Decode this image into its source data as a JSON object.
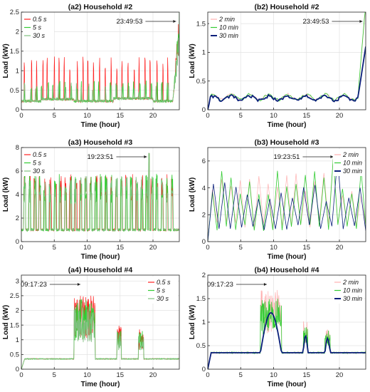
{
  "chart_data": [
    {
      "id": "a2",
      "type": "line",
      "title": "(a2) Household #2",
      "xlabel": "Time (hour)",
      "ylabel": "Load (kW)",
      "xlim": [
        0,
        24
      ],
      "ylim": [
        0,
        2.5
      ],
      "xticks": [
        0,
        5,
        10,
        15,
        20
      ],
      "yticks": [
        0,
        0.5,
        1,
        1.5,
        2,
        2.5
      ],
      "grid": true,
      "legend_position": "top-left",
      "annotation": {
        "text": "23:49:53",
        "x": 23.83,
        "y": 2.3
      },
      "series": [
        {
          "name": "0.5 s",
          "color": "#ff2020",
          "style": "spiky",
          "base": 0.22,
          "peak": 1.3,
          "spikes": 26,
          "end_peak": 2.3
        },
        {
          "name": "5 s",
          "color": "#33cc33",
          "style": "steps",
          "base": 0.22,
          "peak": 0.75,
          "spikes": 26,
          "end_peak": 2.3
        },
        {
          "name": "30 s",
          "color": "#80c080",
          "style": "steps",
          "base": 0.22,
          "peak": 0.7,
          "spikes": 26,
          "end_peak": 2.0
        }
      ]
    },
    {
      "id": "b2",
      "type": "line",
      "title": "(b2) Household #2",
      "xlabel": "Time (hour)",
      "ylabel": "Load (kW)",
      "xlim": [
        0,
        24
      ],
      "ylim": [
        0,
        1.7
      ],
      "xticks": [
        0,
        5,
        10,
        15,
        20
      ],
      "yticks": [
        0,
        0.5,
        1,
        1.5
      ],
      "grid": true,
      "legend_position": "top-left",
      "annotation": {
        "text": "23:49:53",
        "x": 23.83,
        "y": 1.55
      },
      "series": [
        {
          "name": "2 min",
          "color": "#ffb0b0",
          "style": "smooth",
          "base": 0.22,
          "peak": 0.3,
          "spikes": 20,
          "end_peak": 1.55
        },
        {
          "name": "10 min",
          "color": "#33cc33",
          "style": "smooth",
          "base": 0.22,
          "peak": 0.3,
          "spikes": 20,
          "end_peak": 1.6
        },
        {
          "name": "30 min",
          "color": "#0a1f7a",
          "style": "smooth",
          "base": 0.2,
          "peak": 0.26,
          "spikes": 14,
          "end_peak": 0.95
        }
      ]
    },
    {
      "id": "a3",
      "type": "line",
      "title": "(a3) Household #3",
      "xlabel": "Time (hour)",
      "ylabel": "Load (kW)",
      "xlim": [
        0,
        24
      ],
      "ylim": [
        0,
        8
      ],
      "xticks": [
        0,
        5,
        10,
        15,
        20
      ],
      "yticks": [
        0,
        2,
        4,
        6,
        8
      ],
      "grid": true,
      "legend_position": "top-left",
      "annotation": {
        "text": "19:23:51",
        "x": 19.4,
        "y": 7.5
      },
      "series": [
        {
          "name": "0.5 s",
          "color": "#ff2020",
          "style": "blocks",
          "base": 1.0,
          "peak": 5.5,
          "spikes": 30,
          "end_peak": 4.0
        },
        {
          "name": "5 s",
          "color": "#33cc33",
          "style": "blocks",
          "base": 1.0,
          "peak": 5.5,
          "spikes": 30,
          "end_peak": 4.0
        },
        {
          "name": "30 s",
          "color": "#80c080",
          "style": "blocks",
          "base": 1.0,
          "peak": 5.3,
          "spikes": 30,
          "end_peak": 4.0
        }
      ]
    },
    {
      "id": "b3",
      "type": "line",
      "title": "(b3) Household #3",
      "xlabel": "Time (hour)",
      "ylabel": "Load (kW)",
      "xlim": [
        0,
        24
      ],
      "ylim": [
        0,
        7
      ],
      "xticks": [
        0,
        5,
        10,
        15,
        20
      ],
      "yticks": [
        0,
        2,
        4,
        6
      ],
      "grid": true,
      "legend_position": "top-right",
      "annotation": {
        "text": "19:23:51",
        "x": 19.4,
        "y": 6.3
      },
      "series": [
        {
          "name": "2 min",
          "color": "#ffb0b0",
          "style": "zigzag",
          "base": 1.0,
          "peak": 5.0,
          "spikes": 34,
          "end_peak": 3.5
        },
        {
          "name": "10 min",
          "color": "#33cc33",
          "style": "zigzag",
          "base": 0.8,
          "peak": 5.3,
          "spikes": 34,
          "end_peak": 3.5
        },
        {
          "name": "30 min",
          "color": "#0a1f7a",
          "style": "zigzag",
          "base": 0.8,
          "peak": 4.2,
          "spikes": 28,
          "end_peak": 3.0
        }
      ]
    },
    {
      "id": "a4",
      "type": "line",
      "title": "(a4) Household #4",
      "xlabel": "Time (hour)",
      "ylabel": "Load (kW)",
      "xlim": [
        0,
        24
      ],
      "ylim": [
        0,
        3.2
      ],
      "xticks": [
        0,
        5,
        10,
        15,
        20
      ],
      "yticks": [
        0,
        0.5,
        1,
        1.5,
        2,
        2.5,
        3
      ],
      "grid": true,
      "legend_position": "top-right",
      "annotation": {
        "text": "09:17:23",
        "x": 9.29,
        "y": 3.0
      },
      "series": [
        {
          "name": "0.5 s",
          "color": "#ff2020",
          "style": "events",
          "base": 0.35,
          "peak": 2.5,
          "spikes": 0,
          "end_peak": 0.4
        },
        {
          "name": "5 s",
          "color": "#33cc33",
          "style": "events",
          "base": 0.35,
          "peak": 2.4,
          "spikes": 0,
          "end_peak": 0.4
        },
        {
          "name": "30 s",
          "color": "#80c080",
          "style": "events",
          "base": 0.35,
          "peak": 2.2,
          "spikes": 0,
          "end_peak": 0.4
        }
      ]
    },
    {
      "id": "b4",
      "type": "line",
      "title": "(b4) Household #4",
      "xlabel": "Time (hour)",
      "ylabel": "Load (kW)",
      "xlim": [
        0,
        24
      ],
      "ylim": [
        0,
        2
      ],
      "xticks": [
        0,
        5,
        10,
        15,
        20
      ],
      "yticks": [
        0,
        0.5,
        1,
        1.5,
        2
      ],
      "grid": true,
      "legend_position": "top-right",
      "annotation": {
        "text": "09:17:23",
        "x": 9.29,
        "y": 1.72
      },
      "series": [
        {
          "name": "2 min",
          "color": "#ffb0b0",
          "style": "events",
          "base": 0.35,
          "peak": 1.7,
          "spikes": 0,
          "end_peak": 0.4
        },
        {
          "name": "10 min",
          "color": "#33cc33",
          "style": "events",
          "base": 0.35,
          "peak": 1.5,
          "spikes": 0,
          "end_peak": 0.4
        },
        {
          "name": "30 min",
          "color": "#0a1f7a",
          "style": "eventsSmooth",
          "base": 0.35,
          "peak": 1.2,
          "spikes": 0,
          "end_peak": 0.4
        }
      ]
    }
  ]
}
